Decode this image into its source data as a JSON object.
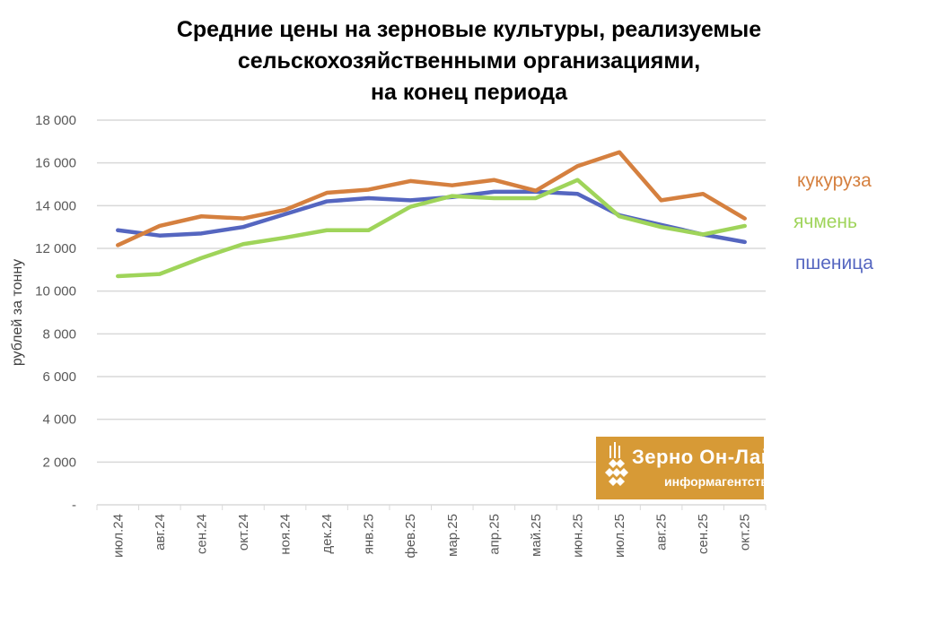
{
  "chart_data": {
    "type": "line",
    "title": [
      "Средние цены на зерновые культуры, реализуемые",
      "сельскохозяйственными организациями,",
      "на конец периода"
    ],
    "ylabel": "рублей за тонну",
    "xlabel": "",
    "ylim": [
      0,
      18000
    ],
    "yticks": [
      0,
      2000,
      4000,
      6000,
      8000,
      10000,
      12000,
      14000,
      16000,
      18000
    ],
    "ytick_labels": [
      "-",
      "2 000",
      "4 000",
      "6 000",
      "8 000",
      "10 000",
      "12 000",
      "14 000",
      "16 000",
      "18 000"
    ],
    "grid": true,
    "legend_position": "right",
    "categories": [
      "июл.24",
      "авг.24",
      "сен.24",
      "окт.24",
      "ноя.24",
      "дек.24",
      "янв.25",
      "фев.25",
      "мар.25",
      "апр.25",
      "май.25",
      "июн.25",
      "июл.25",
      "авг.25",
      "сен.25",
      "окт.25"
    ],
    "series": [
      {
        "name": "кукуруза",
        "color": "#d5803f",
        "values": [
          12150,
          13050,
          13500,
          13400,
          13800,
          14600,
          14750,
          15150,
          14950,
          15200,
          14700,
          15850,
          16500,
          14250,
          14550,
          13400
        ]
      },
      {
        "name": "ячмень",
        "color": "#9fd45a",
        "values": [
          10700,
          10800,
          11550,
          12200,
          12500,
          12850,
          12850,
          13950,
          14450,
          14350,
          14350,
          15200,
          13500,
          13000,
          12650,
          13050
        ]
      },
      {
        "name": "пшеница",
        "color": "#5566c0",
        "values": [
          12850,
          12600,
          12700,
          13000,
          13600,
          14200,
          14350,
          14250,
          14400,
          14650,
          14650,
          14550,
          13550,
          13100,
          12650,
          12300
        ]
      }
    ]
  },
  "logo": {
    "name": "Зерно Он-Лайн",
    "subtitle": "информагентство"
  }
}
